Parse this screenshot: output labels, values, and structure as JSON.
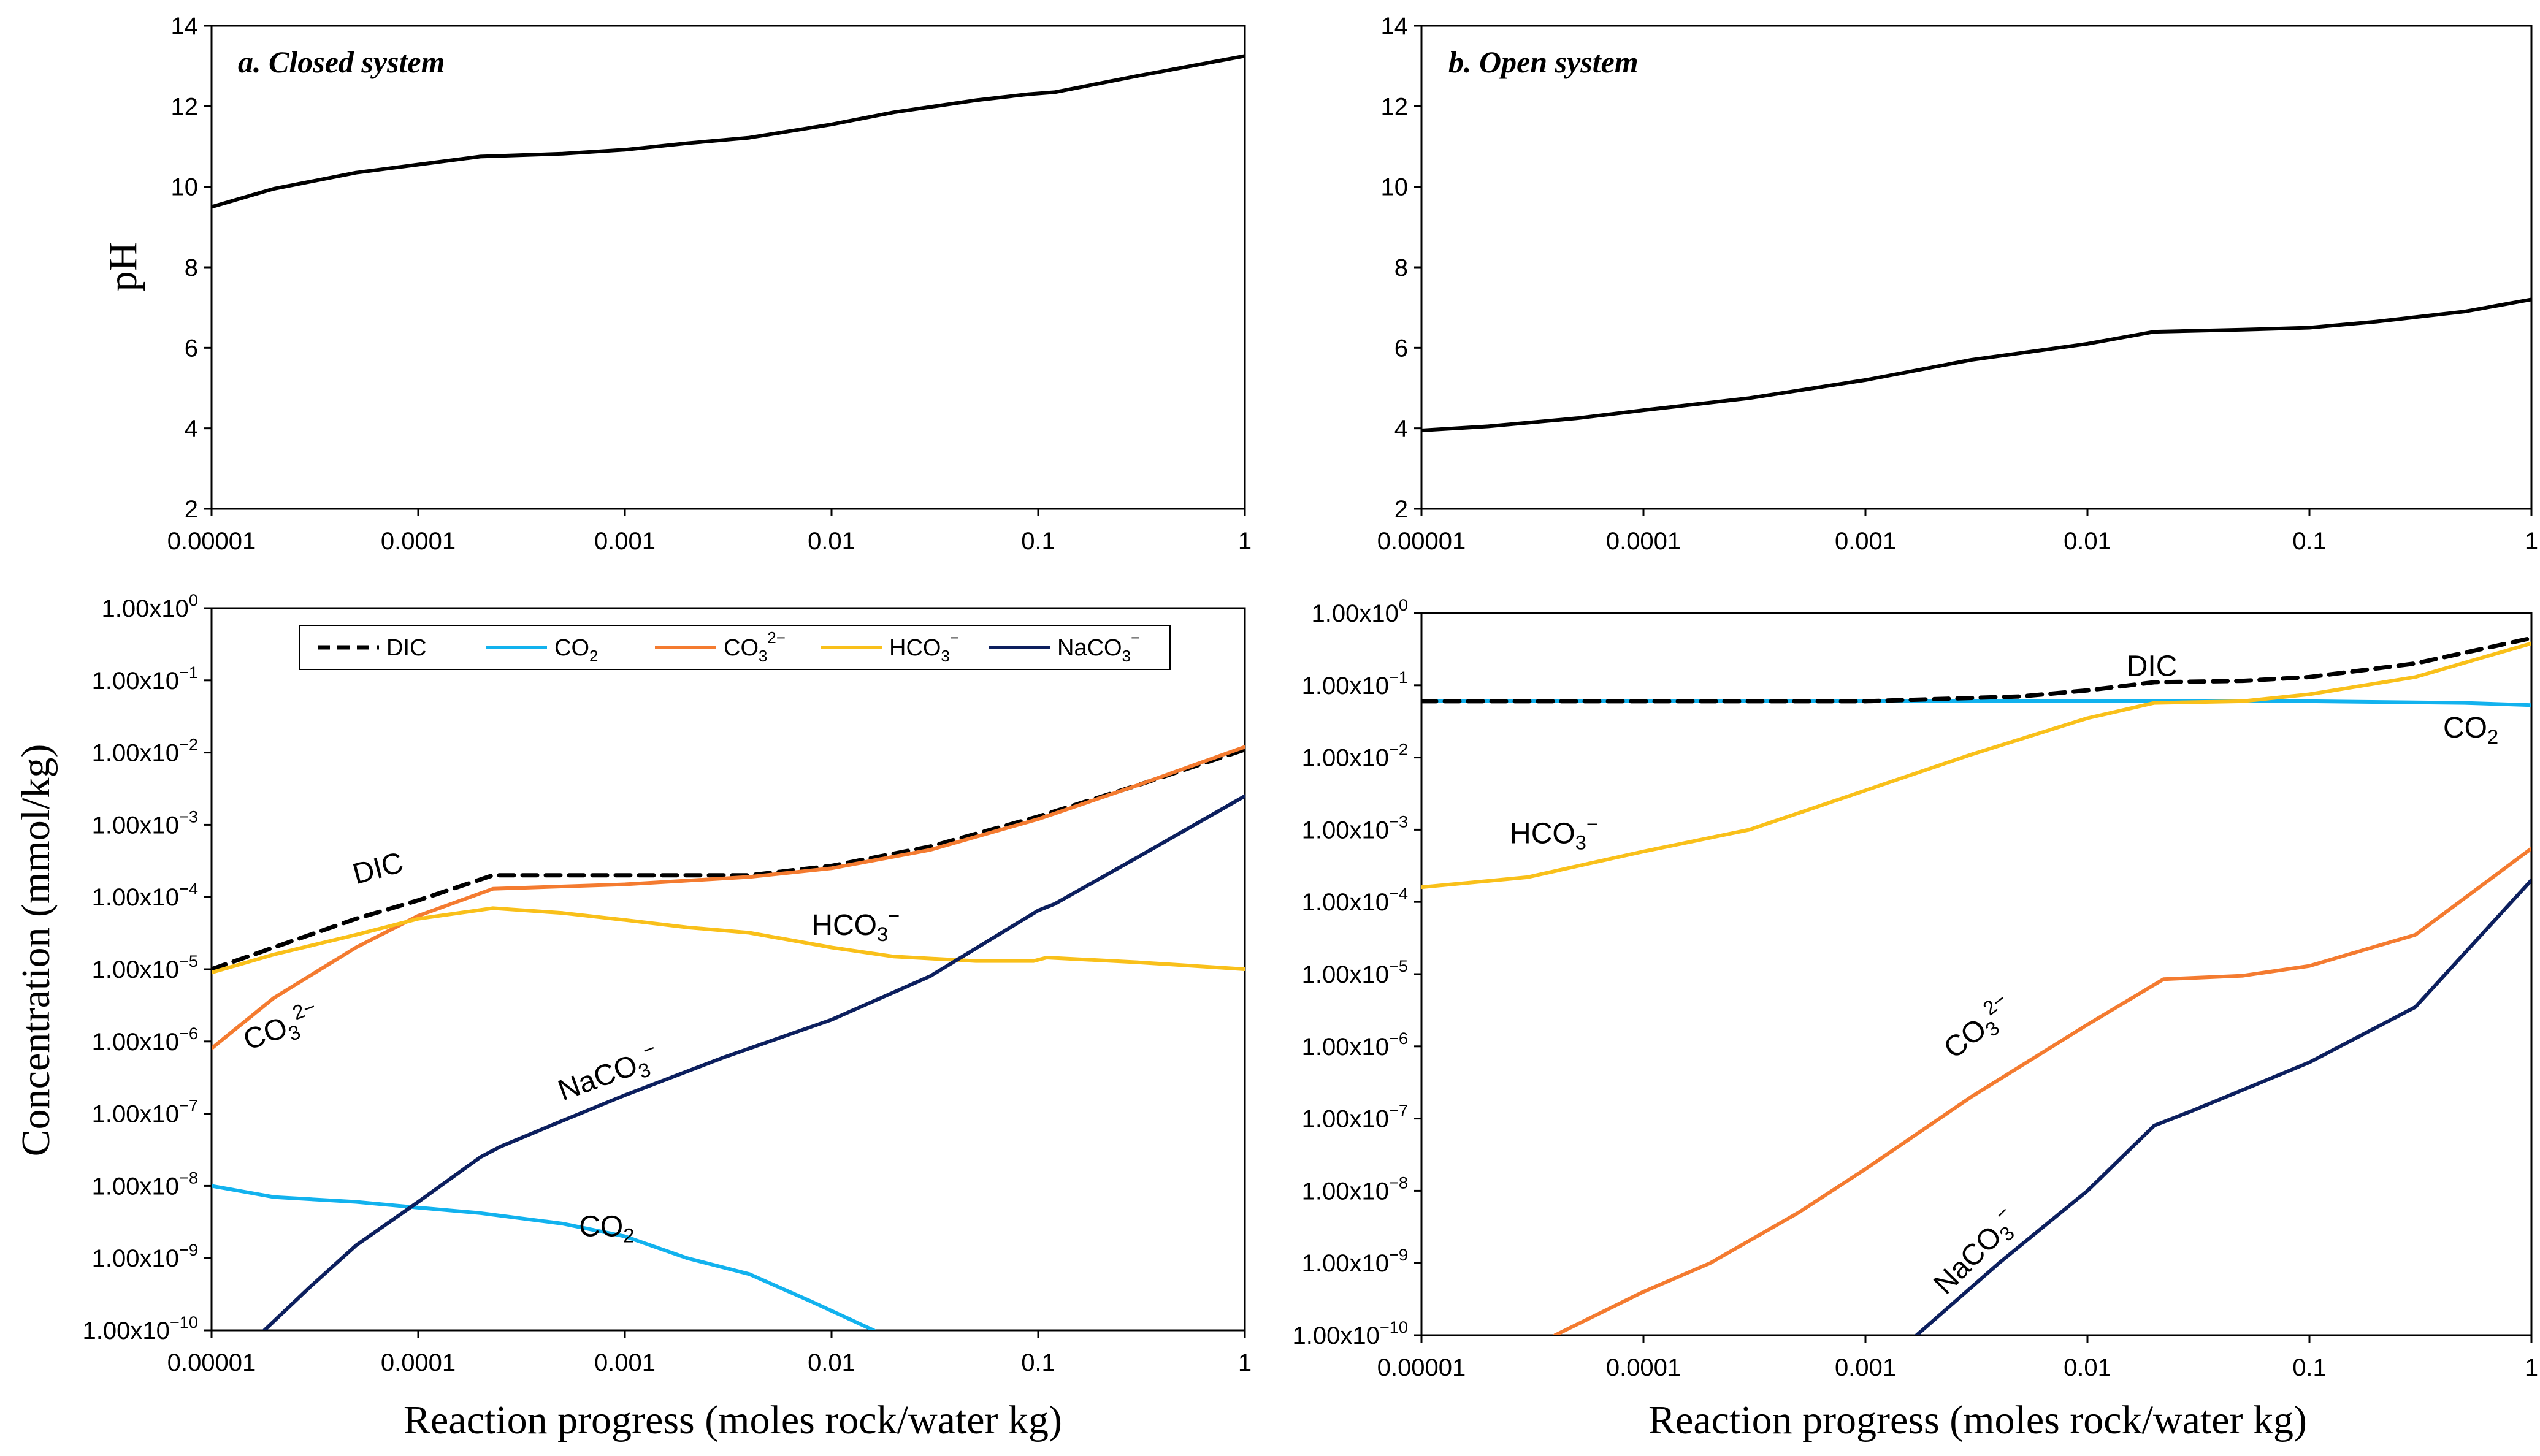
{
  "figure": {
    "y_label_ph": "pH",
    "y_label_conc": "Concentration (mmol/kg)",
    "x_label_bottom_left": "Reaction progress (moles rock/water kg)",
    "x_label_bottom_right": "Reaction progress (moles rock/water kg)"
  },
  "colors": {
    "line_black": "#000000",
    "DIC": "#000000",
    "CO2": "#12B2EE",
    "CO3": "#F47B30",
    "HCO3": "#F9C01A",
    "NaCO3": "#0C1F5E"
  },
  "legend": [
    {
      "key": "DIC",
      "base": "DIC",
      "sub": "",
      "sup": ""
    },
    {
      "key": "CO2",
      "base": "CO",
      "sub": "2",
      "sup": ""
    },
    {
      "key": "CO3",
      "base": "CO",
      "sub": "3",
      "sup": "2−"
    },
    {
      "key": "HCO3",
      "base": "HCO",
      "sub": "3",
      "sup": "−"
    },
    {
      "key": "NaCO3",
      "base": "NaCO",
      "sub": "3",
      "sup": "−"
    }
  ],
  "chart_data": [
    {
      "id": "ph_closed",
      "type": "line",
      "title": "a. Closed system",
      "xscale": "log",
      "xlim": [
        1e-05,
        1
      ],
      "ylim": [
        2,
        14
      ],
      "xticks": [
        "0.00001",
        "0.0001",
        "0.001",
        "0.01",
        "0.1",
        "1"
      ],
      "yticks": [
        "2",
        "4",
        "6",
        "8",
        "10",
        "12",
        "14"
      ],
      "xlabel": "",
      "ylabel": "pH",
      "series": [
        {
          "name": "pH",
          "color_key": "line_black",
          "dash": false,
          "points": [
            [
              1e-05,
              9.5
            ],
            [
              2e-05,
              9.95
            ],
            [
              5e-05,
              10.35
            ],
            [
              0.0001,
              10.55
            ],
            [
              0.0002,
              10.75
            ],
            [
              0.0005,
              10.82
            ],
            [
              0.001,
              10.92
            ],
            [
              0.002,
              11.08
            ],
            [
              0.004,
              11.22
            ],
            [
              0.01,
              11.55
            ],
            [
              0.02,
              11.85
            ],
            [
              0.05,
              12.15
            ],
            [
              0.09,
              12.3
            ],
            [
              0.12,
              12.35
            ],
            [
              0.3,
              12.75
            ],
            [
              1,
              13.25
            ]
          ]
        }
      ],
      "annotations": []
    },
    {
      "id": "ph_open",
      "type": "line",
      "title": "b. Open system",
      "xscale": "log",
      "xlim": [
        1e-05,
        1
      ],
      "ylim": [
        2,
        14
      ],
      "xticks": [
        "0.00001",
        "0.0001",
        "0.001",
        "0.01",
        "0.1",
        "1"
      ],
      "yticks": [
        "2",
        "4",
        "6",
        "8",
        "10",
        "12",
        "14"
      ],
      "xlabel": "",
      "ylabel": "",
      "series": [
        {
          "name": "pH",
          "color_key": "line_black",
          "dash": false,
          "points": [
            [
              1e-05,
              3.95
            ],
            [
              2e-05,
              4.05
            ],
            [
              5e-05,
              4.25
            ],
            [
              0.0001,
              4.45
            ],
            [
              0.0003,
              4.75
            ],
            [
              0.001,
              5.2
            ],
            [
              0.003,
              5.7
            ],
            [
              0.01,
              6.1
            ],
            [
              0.02,
              6.4
            ],
            [
              0.05,
              6.45
            ],
            [
              0.1,
              6.5
            ],
            [
              0.2,
              6.65
            ],
            [
              0.5,
              6.9
            ],
            [
              1,
              7.2
            ]
          ]
        }
      ],
      "annotations": []
    },
    {
      "id": "conc_closed",
      "type": "line",
      "title": "",
      "xscale": "log",
      "yscale": "log",
      "xlim": [
        1e-05,
        1
      ],
      "ylim": [
        1e-10,
        1
      ],
      "xticks": [
        "0.00001",
        "0.0001",
        "0.001",
        "0.01",
        "0.1",
        "1"
      ],
      "yticks": [
        {
          "mant": "1.00x10",
          "exp": "0"
        },
        {
          "mant": "1.00x10",
          "exp": "−1"
        },
        {
          "mant": "1.00x10",
          "exp": "−2"
        },
        {
          "mant": "1.00x10",
          "exp": "−3"
        },
        {
          "mant": "1.00x10",
          "exp": "−4"
        },
        {
          "mant": "1.00x10",
          "exp": "−5"
        },
        {
          "mant": "1.00x10",
          "exp": "−6"
        },
        {
          "mant": "1.00x10",
          "exp": "−7"
        },
        {
          "mant": "1.00x10",
          "exp": "−8"
        },
        {
          "mant": "1.00x10",
          "exp": "−9"
        },
        {
          "mant": "1.00x10",
          "exp": "−10"
        }
      ],
      "xlabel": "Reaction progress (moles rock/water kg)",
      "ylabel": "Concentration (mmol/kg)",
      "legend": "top",
      "series": [
        {
          "name": "DIC",
          "color_key": "DIC",
          "dash": true,
          "points": [
            [
              1e-05,
              1e-05
            ],
            [
              2e-05,
              2e-05
            ],
            [
              5e-05,
              5e-05
            ],
            [
              0.0001,
              9e-05
            ],
            [
              0.00023,
              0.0002
            ],
            [
              0.001,
              0.0002
            ],
            [
              0.004,
              0.0002
            ],
            [
              0.01,
              0.00027
            ],
            [
              0.03,
              0.0005
            ],
            [
              0.1,
              0.0013
            ],
            [
              0.3,
              0.0035
            ],
            [
              1,
              0.011
            ]
          ]
        },
        {
          "name": "CO2",
          "color_key": "CO2",
          "dash": false,
          "points": [
            [
              1e-05,
              1e-08
            ],
            [
              2e-05,
              7e-09
            ],
            [
              5e-05,
              6e-09
            ],
            [
              0.0001,
              5e-09
            ],
            [
              0.0002,
              4.2e-09
            ],
            [
              0.0005,
              3e-09
            ],
            [
              0.001,
              2e-09
            ],
            [
              0.002,
              1e-09
            ],
            [
              0.004,
              6e-10
            ],
            [
              0.008,
              2.5e-10
            ],
            [
              0.016,
              1e-10
            ]
          ]
        },
        {
          "name": "CO3",
          "color_key": "CO3",
          "dash": false,
          "points": [
            [
              1e-05,
              8e-07
            ],
            [
              2e-05,
              4e-06
            ],
            [
              5e-05,
              2e-05
            ],
            [
              0.0001,
              5.5e-05
            ],
            [
              0.00023,
              0.00013
            ],
            [
              0.001,
              0.00015
            ],
            [
              0.004,
              0.00019
            ],
            [
              0.01,
              0.00025
            ],
            [
              0.03,
              0.00045
            ],
            [
              0.1,
              0.0012
            ],
            [
              0.3,
              0.0035
            ],
            [
              1,
              0.012
            ]
          ]
        },
        {
          "name": "HCO3",
          "color_key": "HCO3",
          "dash": false,
          "points": [
            [
              1e-05,
              9e-06
            ],
            [
              2e-05,
              1.6e-05
            ],
            [
              5e-05,
              3e-05
            ],
            [
              0.0001,
              5e-05
            ],
            [
              0.00023,
              7e-05
            ],
            [
              0.0005,
              6e-05
            ],
            [
              0.001,
              4.8e-05
            ],
            [
              0.002,
              3.8e-05
            ],
            [
              0.004,
              3.2e-05
            ],
            [
              0.01,
              2e-05
            ],
            [
              0.02,
              1.5e-05
            ],
            [
              0.05,
              1.3e-05
            ],
            [
              0.095,
              1.3e-05
            ],
            [
              0.11,
              1.45e-05
            ],
            [
              0.3,
              1.25e-05
            ],
            [
              1,
              1e-05
            ]
          ]
        },
        {
          "name": "NaCO3",
          "color_key": "NaCO3",
          "dash": false,
          "points": [
            [
              1.8e-05,
              1e-10
            ],
            [
              3e-05,
              4e-10
            ],
            [
              5e-05,
              1.5e-09
            ],
            [
              0.0001,
              6e-09
            ],
            [
              0.0002,
              2.5e-08
            ],
            [
              0.00025,
              3.5e-08
            ],
            [
              0.0005,
              8e-08
            ],
            [
              0.001,
              1.8e-07
            ],
            [
              0.003,
              6e-07
            ],
            [
              0.01,
              2e-06
            ],
            [
              0.03,
              8e-06
            ],
            [
              0.1,
              6.5e-05
            ],
            [
              0.12,
              8e-05
            ],
            [
              0.3,
              0.00035
            ],
            [
              1,
              0.0025
            ]
          ]
        }
      ],
      "annotations": [
        {
          "series": "DIC",
          "base": "DIC",
          "sub": "",
          "sup": "",
          "x": 5e-05,
          "y": 0.00015,
          "rot": -15
        },
        {
          "series": "HCO3",
          "base": "HCO",
          "sub": "3",
          "sup": "−",
          "x": 0.008,
          "y": 3e-05,
          "rot": 0
        },
        {
          "series": "CO3",
          "base": "CO",
          "sub": "3",
          "sup": "2−",
          "x": 1.5e-05,
          "y": 7.5e-07,
          "rot": -20
        },
        {
          "series": "NaCO3",
          "base": "NaCO",
          "sub": "3",
          "sup": "−",
          "x": 0.0005,
          "y": 1.5e-07,
          "rot": -20
        },
        {
          "series": "CO2",
          "base": "CO",
          "sub": "2",
          "sup": "",
          "x": 0.0006,
          "y": 2e-09,
          "rot": 0
        }
      ]
    },
    {
      "id": "conc_open",
      "type": "line",
      "title": "",
      "xscale": "log",
      "yscale": "log",
      "xlim": [
        1e-05,
        1
      ],
      "ylim": [
        1e-10,
        1
      ],
      "xticks": [
        "0.00001",
        "0.0001",
        "0.001",
        "0.01",
        "0.1",
        "1"
      ],
      "yticks": [
        {
          "mant": "1.00x10",
          "exp": "0"
        },
        {
          "mant": "1.00x10",
          "exp": "−1"
        },
        {
          "mant": "1.00x10",
          "exp": "−2"
        },
        {
          "mant": "1.00x10",
          "exp": "−3"
        },
        {
          "mant": "1.00x10",
          "exp": "−4"
        },
        {
          "mant": "1.00x10",
          "exp": "−5"
        },
        {
          "mant": "1.00x10",
          "exp": "−6"
        },
        {
          "mant": "1.00x10",
          "exp": "−7"
        },
        {
          "mant": "1.00x10",
          "exp": "−8"
        },
        {
          "mant": "1.00x10",
          "exp": "−9"
        },
        {
          "mant": "1.00x10",
          "exp": "−10"
        }
      ],
      "xlabel": "Reaction progress (moles rock/water kg)",
      "ylabel": "",
      "series": [
        {
          "name": "CO2",
          "color_key": "CO2",
          "dash": false,
          "points": [
            [
              1e-05,
              0.06
            ],
            [
              0.001,
              0.06
            ],
            [
              0.02,
              0.06
            ],
            [
              0.1,
              0.06
            ],
            [
              0.5,
              0.057
            ],
            [
              1,
              0.053
            ]
          ]
        },
        {
          "name": "DIC",
          "color_key": "DIC",
          "dash": true,
          "points": [
            [
              1e-05,
              0.06
            ],
            [
              0.001,
              0.06
            ],
            [
              0.005,
              0.07
            ],
            [
              0.01,
              0.085
            ],
            [
              0.02,
              0.11
            ],
            [
              0.05,
              0.115
            ],
            [
              0.1,
              0.13
            ],
            [
              0.3,
              0.2
            ],
            [
              1,
              0.45
            ]
          ]
        },
        {
          "name": "HCO3",
          "color_key": "HCO3",
          "dash": false,
          "points": [
            [
              1e-05,
              0.00016
            ],
            [
              3e-05,
              0.00022
            ],
            [
              0.0001,
              0.0005
            ],
            [
              0.0003,
              0.001
            ],
            [
              0.001,
              0.0035
            ],
            [
              0.003,
              0.011
            ],
            [
              0.01,
              0.035
            ],
            [
              0.02,
              0.057
            ],
            [
              0.05,
              0.06
            ],
            [
              0.1,
              0.075
            ],
            [
              0.3,
              0.13
            ],
            [
              1,
              0.38
            ]
          ]
        },
        {
          "name": "CO3",
          "color_key": "CO3",
          "dash": false,
          "points": [
            [
              4e-05,
              1e-10
            ],
            [
              0.0001,
              4e-10
            ],
            [
              0.0002,
              1e-09
            ],
            [
              0.0005,
              5e-09
            ],
            [
              0.001,
              2e-08
            ],
            [
              0.003,
              2e-07
            ],
            [
              0.01,
              2e-06
            ],
            [
              0.022,
              8.5e-06
            ],
            [
              0.05,
              9.5e-06
            ],
            [
              0.1,
              1.3e-05
            ],
            [
              0.3,
              3.5e-05
            ],
            [
              1,
              0.00055
            ]
          ]
        },
        {
          "name": "NaCO3",
          "color_key": "NaCO3",
          "dash": false,
          "points": [
            [
              0.0017,
              1e-10
            ],
            [
              0.004,
              1e-09
            ],
            [
              0.01,
              1e-08
            ],
            [
              0.02,
              8e-08
            ],
            [
              0.03,
              1.3e-07
            ],
            [
              0.1,
              6e-07
            ],
            [
              0.3,
              3.5e-06
            ],
            [
              1,
              0.0002
            ]
          ]
        }
      ],
      "annotations": [
        {
          "series": "DIC",
          "base": "DIC",
          "sub": "",
          "sup": "",
          "x": 0.015,
          "y": 0.135,
          "rot": 0
        },
        {
          "series": "CO2",
          "base": "CO",
          "sub": "2",
          "sup": "",
          "x": 0.4,
          "y": 0.019,
          "rot": 0
        },
        {
          "series": "HCO3",
          "base": "HCO",
          "sub": "3",
          "sup": "−",
          "x": 2.5e-05,
          "y": 0.00065,
          "rot": 0
        },
        {
          "series": "CO3",
          "base": "CO",
          "sub": "3",
          "sup": "2−",
          "x": 0.0025,
          "y": 6.5e-07,
          "rot": -38
        },
        {
          "series": "NaCO3",
          "base": "NaCO",
          "sub": "3",
          "sup": "−",
          "x": 0.0023,
          "y": 3.5e-10,
          "rot": -45
        }
      ]
    }
  ]
}
